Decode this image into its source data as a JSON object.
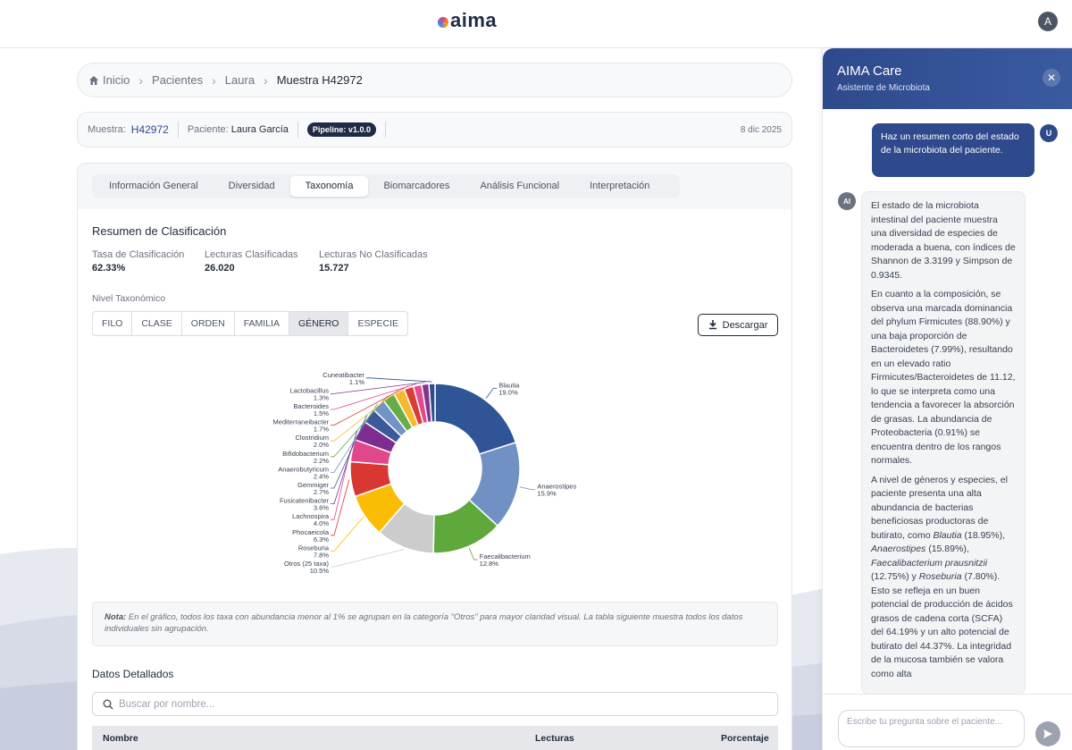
{
  "app": {
    "logo": "aima",
    "user_initial": "A"
  },
  "breadcrumb": {
    "items": [
      "Inicio",
      "Pacientes",
      "Laura"
    ],
    "current": "Muestra H42972"
  },
  "sample": {
    "label": "Muestra:",
    "id": "H42972",
    "patient_label": "Paciente:",
    "patient_name": "Laura García",
    "pipeline": "Pipeline: v1.0.0",
    "date": "8 dic 2025"
  },
  "tabs": [
    "Información General",
    "Diversidad",
    "Taxonomía",
    "Biomarcadores",
    "Análisis Funcional",
    "Interpretación"
  ],
  "active_tab": "Taxonomía",
  "summary": {
    "title": "Resumen de Clasificación",
    "stats": [
      {
        "label": "Tasa de Clasificación",
        "value": "62.33%"
      },
      {
        "label": "Lecturas Clasificadas",
        "value": "26.020"
      },
      {
        "label": "Lecturas No Clasificadas",
        "value": "15.727"
      }
    ]
  },
  "taxonomy": {
    "level_label": "Nivel Taxonómico",
    "levels": [
      "FILO",
      "CLASE",
      "ORDEN",
      "FAMILIA",
      "GÉNERO",
      "ESPECIE"
    ],
    "active_level": "GÉNERO",
    "download_label": "Descargar"
  },
  "chart_data": {
    "type": "pie",
    "donut": true,
    "slices": [
      {
        "name": "Blautia",
        "value": 19.0,
        "label": "19.0%",
        "color": "#2f5597"
      },
      {
        "name": "Anaerostipes",
        "value": 15.9,
        "label": "15.9%",
        "color": "#7190c4"
      },
      {
        "name": "Faecalibacterium",
        "value": 12.8,
        "label": "12.8%",
        "color": "#5fa83c"
      },
      {
        "name": "Otros (25 taxa)",
        "value": 10.5,
        "label": "10.5%",
        "color": "#cccccc"
      },
      {
        "name": "Roseburia",
        "value": 7.8,
        "label": "7.8%",
        "color": "#fbbc05"
      },
      {
        "name": "Phocaeicola",
        "value": 6.3,
        "label": "6.3%",
        "color": "#d93732"
      },
      {
        "name": "Lachnospira",
        "value": 4.0,
        "label": "4.0%",
        "color": "#e0488b"
      },
      {
        "name": "Fusicatenibacter",
        "value": 3.6,
        "label": "3.6%",
        "color": "#7d2d8f"
      },
      {
        "name": "Gemmiger",
        "value": 2.7,
        "label": "2.7%",
        "color": "#3a5a9b"
      },
      {
        "name": "Anaerobutyricum",
        "value": 2.4,
        "label": "2.4%",
        "color": "#7392c6"
      },
      {
        "name": "Bifidobacterium",
        "value": 2.2,
        "label": "2.2%",
        "color": "#67ad45"
      },
      {
        "name": "Clostridium",
        "value": 2.0,
        "label": "2.0%",
        "color": "#f5b92e"
      },
      {
        "name": "Mediterraneibacter",
        "value": 1.7,
        "label": "1.7%",
        "color": "#db3c35"
      },
      {
        "name": "Bacteroides",
        "value": 1.5,
        "label": "1.5%",
        "color": "#e34a90"
      },
      {
        "name": "Lactobacillus",
        "value": 1.3,
        "label": "1.3%",
        "color": "#84348f"
      },
      {
        "name": "Cuneatibacter",
        "value": 1.1,
        "label": "1.1%",
        "color": "#2f4e8c"
      }
    ]
  },
  "note": {
    "prefix": "Nota:",
    "text": " En el gráfico, todos los taxa con abundancia menor al 1% se agrupan en la categoría \"Otros\" para mayor claridad visual. La tabla siguiente muestra todos los datos individuales sin agrupación."
  },
  "details": {
    "title": "Datos Detallados",
    "search_placeholder": "Buscar por nombre...",
    "columns": [
      "Nombre",
      "Lecturas",
      "Porcentaje"
    ]
  },
  "chat": {
    "title": "AIMA Care",
    "subtitle": "Asistente de Microbiota",
    "close_symbol": "✕",
    "user_badge": "U",
    "ai_badge": "AI",
    "user_message": "Haz un resumen corto del estado de la microbiota del paciente.",
    "ai_p1": "El estado de la microbiota intestinal del paciente muestra una diversidad de especies de moderada a buena, con índices de Shannon de 3.3199 y Simpson de 0.9345.",
    "ai_p2": "En cuanto a la composición, se observa una marcada dominancia del phylum Firmicutes (88.90%) y una baja proporción de Bacteroidetes (7.99%), resultando en un elevado ratio Firmicutes/Bacteroidetes de 11.12, lo que se interpreta como una tendencia a favorecer la absorción de grasas. La abundancia de Proteobacteria (0.91%) se encuentra dentro de los rangos normales.",
    "ai_p3": {
      "t1": "A nivel de géneros y especies, el paciente presenta una alta abundancia de bacterias beneficiosas productoras de butirato, como ",
      "s1": "Blautia",
      "t2": " (18.95%), ",
      "s2": "Anaerostipes",
      "t3": " (15.89%), ",
      "s3": "Faecalibacterium prausnitzii",
      "t4": " (12.75%) y ",
      "s4": "Roseburia",
      "t5": " (7.80%). Esto se refleja en un buen potencial de producción de ácidos grasos de cadena corta (SCFA) del 64.19% y un alto potencial de butirato del 44.37%. La integridad de la mucosa también se valora como alta"
    },
    "input_placeholder": "Escribe tu pregunta sobre el paciente..."
  }
}
